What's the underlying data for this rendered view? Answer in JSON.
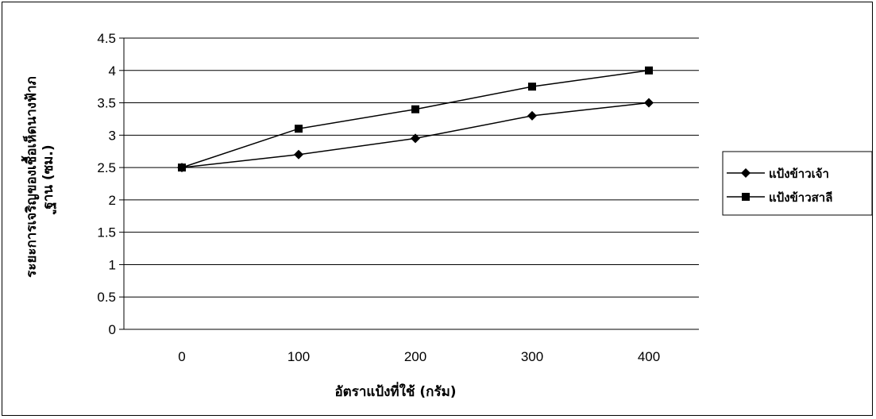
{
  "chart_data": {
    "type": "line",
    "title": "",
    "xlabel": "อัตราแป้งที่ใช้ (กรัม)",
    "ylabel": "ระยะการเจริญของเชื้อเห็ดนางฟ้าภูฐาน (ซม.)",
    "x": [
      0,
      100,
      200,
      300,
      400
    ],
    "categories": [
      "0",
      "100",
      "200",
      "300",
      "400"
    ],
    "ylim": [
      0,
      4.5
    ],
    "yticks": [
      "0",
      "0.5",
      "1",
      "1.5",
      "2",
      "2.5",
      "3",
      "3.5",
      "4",
      "4.5"
    ],
    "grid": true,
    "legend_position": "right",
    "series": [
      {
        "name": "แป้งข้าวเจ้า",
        "marker": "diamond",
        "color": "#000000",
        "values": [
          2.5,
          2.7,
          2.95,
          3.3,
          3.5
        ]
      },
      {
        "name": "แป้งข้าวสาลี",
        "marker": "square",
        "color": "#000000",
        "values": [
          2.5,
          3.1,
          3.4,
          3.75,
          4.0
        ]
      }
    ]
  }
}
